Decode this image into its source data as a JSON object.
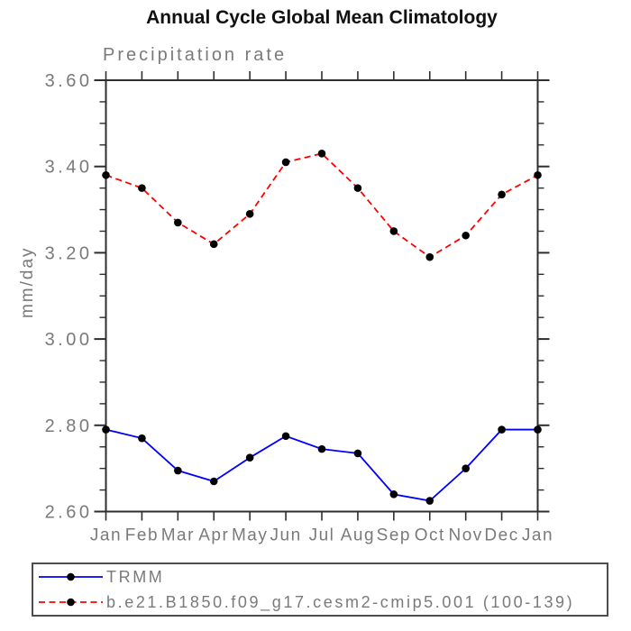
{
  "chart_data": {
    "type": "line",
    "title": "Annual Cycle Global Mean Climatology",
    "subtitle": "Precipitation rate",
    "xlabel": "",
    "ylabel": "mm/day",
    "categories": [
      "Jan",
      "Feb",
      "Mar",
      "Apr",
      "May",
      "Jun",
      "Jul",
      "Aug",
      "Sep",
      "Oct",
      "Nov",
      "Dec",
      "Jan"
    ],
    "ylim": [
      2.6,
      3.6
    ],
    "yticks": [
      "2.60",
      "2.80",
      "3.00",
      "3.20",
      "3.40",
      "3.60"
    ],
    "ytick_step": 0.2,
    "yminor_step": 0.05,
    "grid": false,
    "legend_position": "bottom",
    "axis_color": "#2e2e2e",
    "text_color": "#7a7a7a",
    "series": [
      {
        "name": "TRMM",
        "color": "#0000ff",
        "style": "solid",
        "marker": "circle",
        "marker_color": "#000000",
        "values": [
          2.79,
          2.77,
          2.695,
          2.67,
          2.725,
          2.775,
          2.745,
          2.735,
          2.64,
          2.625,
          2.7,
          2.79,
          2.79
        ]
      },
      {
        "name": "b.e21.B1850.f09_g17.cesm2-cmip5.001 (100-139)",
        "color": "#ff0000",
        "style": "dashed",
        "marker": "circle",
        "marker_color": "#000000",
        "values": [
          3.38,
          3.35,
          3.27,
          3.22,
          3.29,
          3.41,
          3.43,
          3.35,
          3.25,
          3.19,
          3.24,
          3.335,
          3.38
        ]
      }
    ]
  }
}
